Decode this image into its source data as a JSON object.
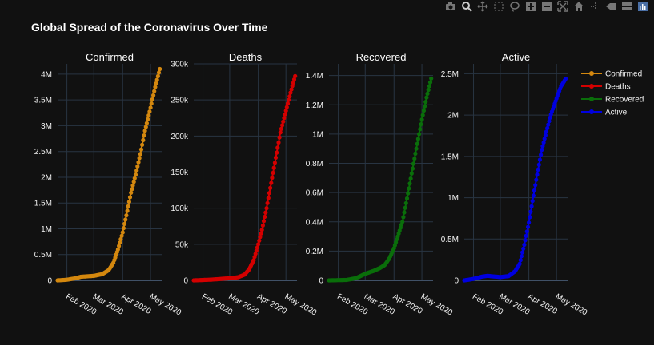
{
  "page": {
    "background": "#111111",
    "grid_color": "#283442"
  },
  "toolbar": {
    "buttons": [
      {
        "name": "camera-icon"
      },
      {
        "name": "zoom-icon"
      },
      {
        "name": "pan-icon"
      },
      {
        "name": "box-select-icon"
      },
      {
        "name": "lasso-select-icon"
      },
      {
        "name": "zoom-in-icon"
      },
      {
        "name": "zoom-out-icon"
      },
      {
        "name": "autoscale-icon"
      },
      {
        "name": "reset-axes-icon"
      },
      {
        "name": "spike-lines-icon"
      },
      {
        "name": "hover-closest-icon"
      },
      {
        "name": "hover-compare-icon"
      },
      {
        "name": "plotly-logo-icon"
      }
    ]
  },
  "chart_data": {
    "type": "line",
    "title": "Global Spread of the Coronavirus Over Time",
    "x_ticks": [
      "Feb 2020",
      "Mar 2020",
      "Apr 2020",
      "May 2020"
    ],
    "x_tick_dates": [
      "2020-02-01",
      "2020-03-01",
      "2020-04-01",
      "2020-05-01"
    ],
    "x_range": [
      "2020-01-22",
      "2020-05-13"
    ],
    "grid": true,
    "legend_position": "top-right",
    "legend": [
      {
        "name": "Confirmed",
        "color": "#d4880f"
      },
      {
        "name": "Deaths",
        "color": "#d40000"
      },
      {
        "name": "Recovered",
        "color": "#0a6e0a"
      },
      {
        "name": "Active",
        "color": "#0000e0"
      }
    ],
    "subplots": [
      {
        "title": "Confirmed",
        "color": "#d4880f",
        "ylim": [
          0,
          4200000
        ],
        "y_ticks": [
          [
            0,
            "0"
          ],
          [
            500000,
            "0.5M"
          ],
          [
            1000000,
            "1M"
          ],
          [
            1500000,
            "1.5M"
          ],
          [
            2000000,
            "2M"
          ],
          [
            2500000,
            "2.5M"
          ],
          [
            3000000,
            "3M"
          ],
          [
            3500000,
            "3.5M"
          ],
          [
            4000000,
            "4M"
          ]
        ],
        "points": [
          [
            "2020-01-22",
            0
          ],
          [
            "2020-02-01",
            12000
          ],
          [
            "2020-02-10",
            40000
          ],
          [
            "2020-02-16",
            70000
          ],
          [
            "2020-03-01",
            88000
          ],
          [
            "2020-03-10",
            120000
          ],
          [
            "2020-03-17",
            200000
          ],
          [
            "2020-03-22",
            340000
          ],
          [
            "2020-03-27",
            600000
          ],
          [
            "2020-04-01",
            930000
          ],
          [
            "2020-04-05",
            1260000
          ],
          [
            "2020-04-10",
            1700000
          ],
          [
            "2020-04-15",
            2050000
          ],
          [
            "2020-04-20",
            2450000
          ],
          [
            "2020-04-25",
            2900000
          ],
          [
            "2020-05-01",
            3350000
          ],
          [
            "2020-05-06",
            3750000
          ],
          [
            "2020-05-11",
            4100000
          ]
        ]
      },
      {
        "title": "Deaths",
        "color": "#d40000",
        "ylim": [
          0,
          300000
        ],
        "y_ticks": [
          [
            0,
            "0"
          ],
          [
            50000,
            "50k"
          ],
          [
            100000,
            "100k"
          ],
          [
            150000,
            "150k"
          ],
          [
            200000,
            "200k"
          ],
          [
            250000,
            "250k"
          ],
          [
            300000,
            "300k"
          ]
        ],
        "points": [
          [
            "2020-01-22",
            0
          ],
          [
            "2020-02-10",
            1000
          ],
          [
            "2020-03-01",
            3000
          ],
          [
            "2020-03-10",
            4300
          ],
          [
            "2020-03-17",
            7900
          ],
          [
            "2020-03-22",
            15000
          ],
          [
            "2020-03-27",
            28000
          ],
          [
            "2020-04-01",
            50000
          ],
          [
            "2020-04-05",
            70000
          ],
          [
            "2020-04-10",
            100000
          ],
          [
            "2020-04-15",
            135000
          ],
          [
            "2020-04-20",
            170000
          ],
          [
            "2020-04-25",
            205000
          ],
          [
            "2020-05-01",
            235000
          ],
          [
            "2020-05-06",
            260000
          ],
          [
            "2020-05-11",
            283000
          ]
        ]
      },
      {
        "title": "Recovered",
        "color": "#0a6e0a",
        "ylim": [
          0,
          1480000
        ],
        "y_ticks": [
          [
            0,
            "0"
          ],
          [
            200000,
            "0.2M"
          ],
          [
            400000,
            "0.4M"
          ],
          [
            600000,
            "0.6M"
          ],
          [
            800000,
            "0.8M"
          ],
          [
            1000000,
            "1M"
          ],
          [
            1200000,
            "1.2M"
          ],
          [
            1400000,
            "1.4M"
          ]
        ],
        "points": [
          [
            "2020-01-22",
            0
          ],
          [
            "2020-02-10",
            3000
          ],
          [
            "2020-02-20",
            15000
          ],
          [
            "2020-03-01",
            45000
          ],
          [
            "2020-03-10",
            65000
          ],
          [
            "2020-03-17",
            85000
          ],
          [
            "2020-03-22",
            105000
          ],
          [
            "2020-03-27",
            150000
          ],
          [
            "2020-04-01",
            220000
          ],
          [
            "2020-04-05",
            300000
          ],
          [
            "2020-04-10",
            400000
          ],
          [
            "2020-04-15",
            560000
          ],
          [
            "2020-04-20",
            730000
          ],
          [
            "2020-04-25",
            900000
          ],
          [
            "2020-05-01",
            1100000
          ],
          [
            "2020-05-06",
            1250000
          ],
          [
            "2020-05-11",
            1380000
          ]
        ]
      },
      {
        "title": "Active",
        "color": "#0000e0",
        "ylim": [
          0,
          2620000
        ],
        "y_ticks": [
          [
            0,
            "0"
          ],
          [
            500000,
            "0.5M"
          ],
          [
            1000000,
            "1M"
          ],
          [
            1500000,
            "1.5M"
          ],
          [
            2000000,
            "2M"
          ],
          [
            2500000,
            "2.5M"
          ]
        ],
        "points": [
          [
            "2020-01-22",
            0
          ],
          [
            "2020-02-01",
            18000
          ],
          [
            "2020-02-10",
            45000
          ],
          [
            "2020-02-16",
            55000
          ],
          [
            "2020-03-01",
            40000
          ],
          [
            "2020-03-10",
            52000
          ],
          [
            "2020-03-17",
            110000
          ],
          [
            "2020-03-22",
            200000
          ],
          [
            "2020-03-27",
            430000
          ],
          [
            "2020-04-01",
            700000
          ],
          [
            "2020-04-05",
            960000
          ],
          [
            "2020-04-10",
            1280000
          ],
          [
            "2020-04-15",
            1580000
          ],
          [
            "2020-04-20",
            1800000
          ],
          [
            "2020-04-25",
            2010000
          ],
          [
            "2020-05-01",
            2200000
          ],
          [
            "2020-05-06",
            2350000
          ],
          [
            "2020-05-11",
            2440000
          ]
        ]
      }
    ]
  }
}
